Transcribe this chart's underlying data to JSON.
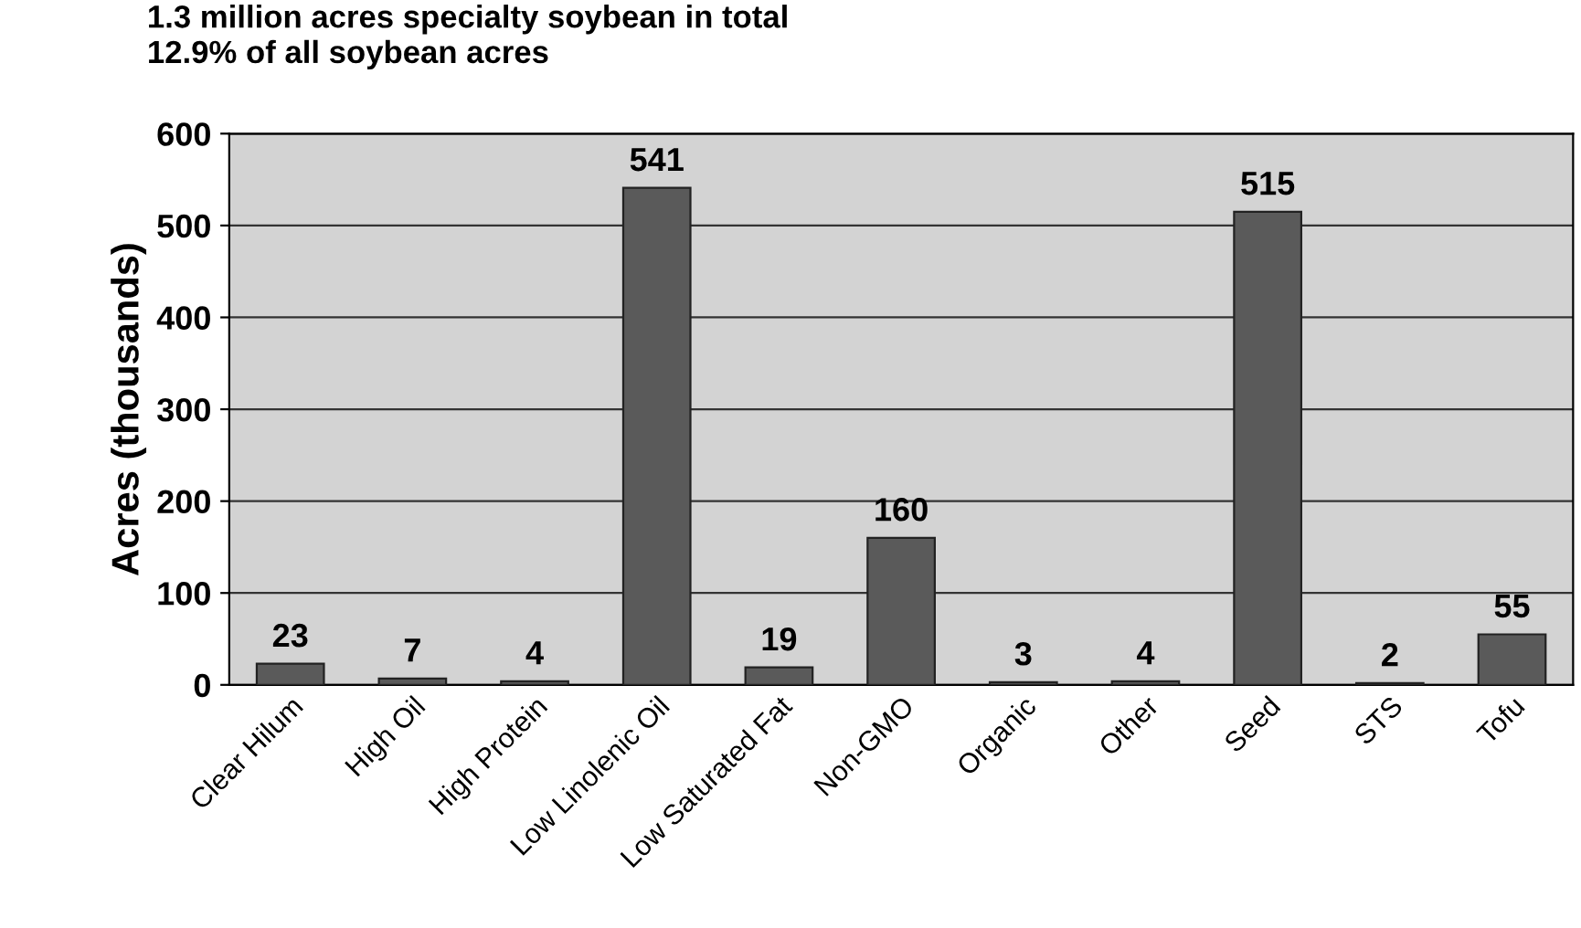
{
  "chart_data": {
    "type": "bar",
    "title": "1.3 million acres specialty soybean in total\n12.9% of all soybean acres",
    "ylabel": "Acres (thousands)",
    "categories": [
      "Clear Hilum",
      "High Oil",
      "High Protein",
      "Low Linolenic Oil",
      "Low Saturated Fat",
      "Non-GMO",
      "Organic",
      "Other",
      "Seed",
      "STS",
      "Tofu"
    ],
    "values": [
      23,
      7,
      4,
      541,
      19,
      160,
      3,
      4,
      515,
      2,
      55
    ],
    "color": "#5a5a5a",
    "ylim": [
      0,
      600
    ],
    "yticks": [
      0,
      100,
      200,
      300,
      400,
      500,
      600
    ],
    "grid": "y",
    "data_labels": true,
    "legend": false
  }
}
